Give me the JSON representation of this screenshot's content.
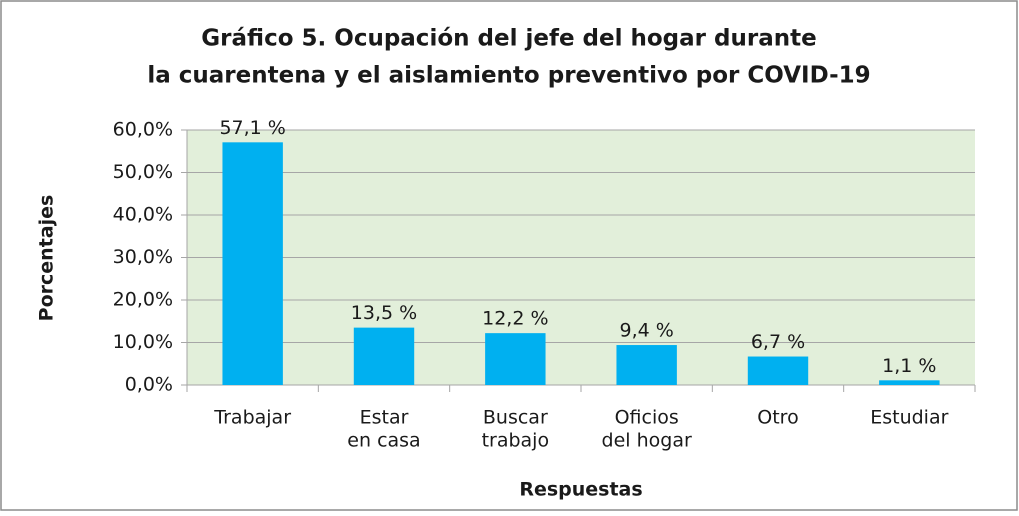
{
  "chart_data": {
    "type": "bar",
    "title": [
      "Gráfico 5. Ocupación del jefe del hogar durante",
      "la cuarentena y el aislamiento preventivo por COVID-19"
    ],
    "categories": [
      [
        "Trabajar"
      ],
      [
        "Estar",
        "en casa"
      ],
      [
        "Buscar",
        "trabajo"
      ],
      [
        "Oficios",
        "del hogar"
      ],
      [
        "Otro"
      ],
      [
        "Estudiar"
      ]
    ],
    "values": [
      57.1,
      13.5,
      12.2,
      9.4,
      6.7,
      1.1
    ],
    "value_labels": [
      "57,1 %",
      "13,5 %",
      "12,2 %",
      "9,4 %",
      "6,7 %",
      "1,1 %"
    ],
    "color": "#00b0f0",
    "xlabel": "Respuestas",
    "ylabel": "Porcentajes",
    "ylim": [
      0,
      60
    ],
    "yticks": [
      {
        "value": 0,
        "label": "0,0%"
      },
      {
        "value": 10,
        "label": "10,0%"
      },
      {
        "value": 20,
        "label": "20,0%"
      },
      {
        "value": 30,
        "label": "30,0%"
      },
      {
        "value": 40,
        "label": "40,0%"
      },
      {
        "value": 50,
        "label": "50,0%"
      },
      {
        "value": 60,
        "label": "60,0%"
      }
    ],
    "grid": true
  }
}
